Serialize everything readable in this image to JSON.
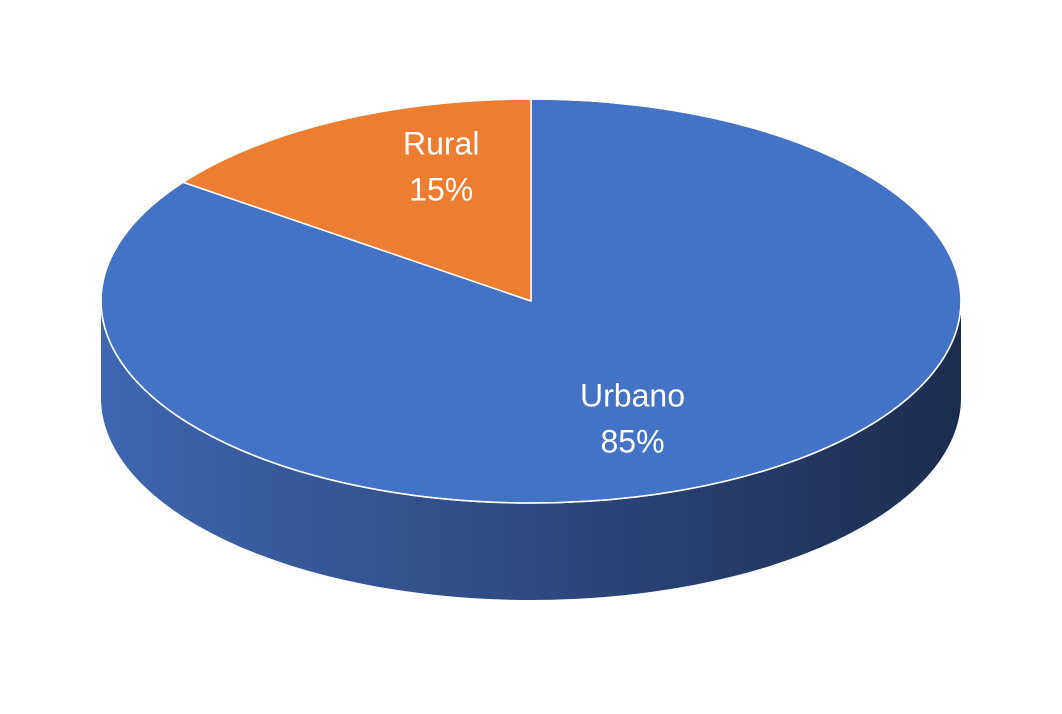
{
  "chart_data": {
    "type": "pie",
    "title": "",
    "style": "3d",
    "start_angle_deg": 0,
    "direction": "clockwise",
    "slices": [
      {
        "label": "Urbano",
        "value": 85,
        "value_label": "85%",
        "color": "#4472C4",
        "side_color_light": "#3F66B0",
        "side_color_dark": "#1C2D4F"
      },
      {
        "label": "Rural",
        "value": 15,
        "value_label": "15%",
        "color": "#ED7D31",
        "side_color_light": "#C9651F",
        "side_color_dark": "#8A4414"
      }
    ],
    "legend": "none",
    "data_labels": "inside"
  }
}
